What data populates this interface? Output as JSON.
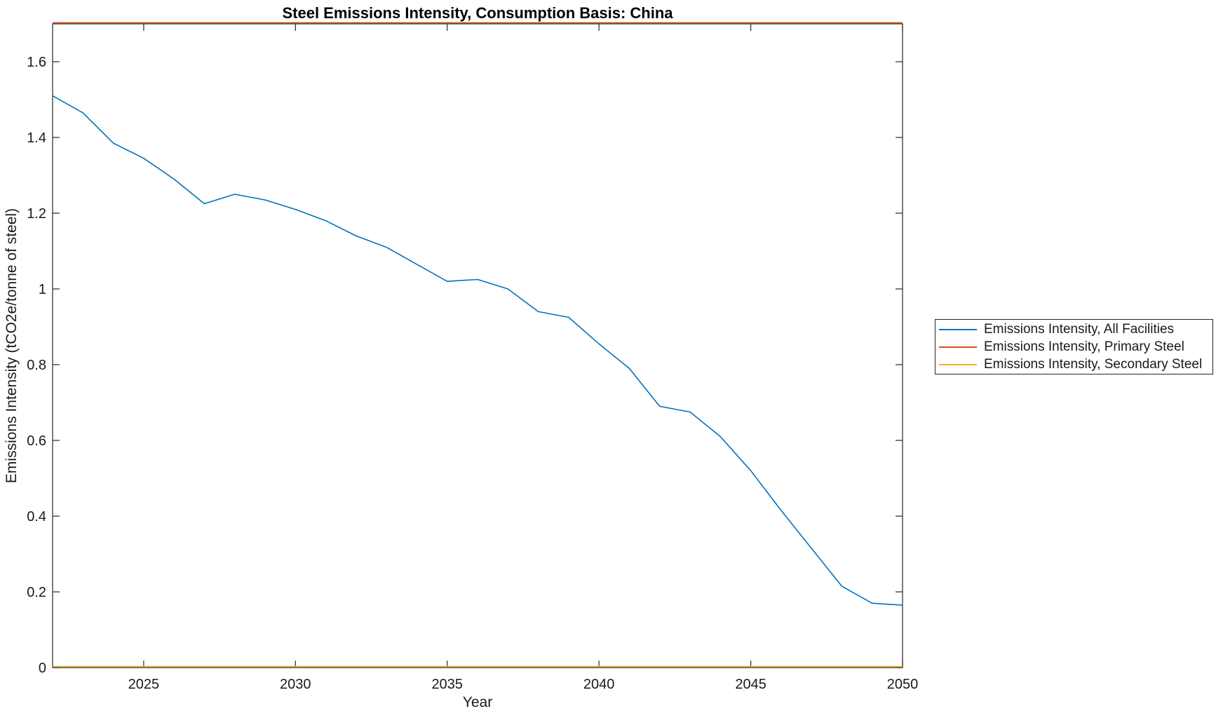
{
  "chart_data": {
    "type": "line",
    "title": "Steel Emissions Intensity, Consumption Basis: China",
    "xlabel": "Year",
    "ylabel": "Emissions Intensity (tCO2e/tonne of steel)",
    "xlim": [
      2022,
      2050
    ],
    "ylim": [
      0,
      1.7
    ],
    "xticks": [
      "2025",
      "2030",
      "2035",
      "2040",
      "2045",
      "2050"
    ],
    "xtick_values": [
      2025,
      2030,
      2035,
      2040,
      2045,
      2050
    ],
    "yticks": [
      "0",
      "0.2",
      "0.4",
      "0.6",
      "0.8",
      "1",
      "1.2",
      "1.4",
      "1.6"
    ],
    "ytick_values": [
      0,
      0.2,
      0.4,
      0.6,
      0.8,
      1,
      1.2,
      1.4,
      1.6
    ],
    "grid": false,
    "box": true,
    "tick_direction": "in",
    "legend_position": "right-outside",
    "axis_color": "#262626",
    "text_color": "#1a1a1a",
    "x": [
      2022,
      2023,
      2024,
      2025,
      2026,
      2027,
      2028,
      2029,
      2030,
      2031,
      2032,
      2033,
      2034,
      2035,
      2036,
      2037,
      2038,
      2039,
      2040,
      2041,
      2042,
      2043,
      2044,
      2045,
      2046,
      2047,
      2048,
      2049,
      2050
    ],
    "series": [
      {
        "name": "Emissions Intensity, All Facilities",
        "color": "#0072BD",
        "values": [
          1.51,
          1.465,
          1.385,
          1.345,
          1.29,
          1.225,
          1.25,
          1.235,
          1.21,
          1.18,
          1.14,
          1.11,
          1.065,
          1.02,
          1.025,
          1.0,
          0.94,
          0.925,
          0.855,
          0.79,
          0.69,
          0.675,
          0.61,
          0.52,
          0.415,
          0.315,
          0.215,
          0.17,
          0.165
        ]
      },
      {
        "name": "Emissions Intensity, Primary Steel",
        "color": "#D95319",
        "values": [
          1.7,
          1.7,
          1.7,
          1.7,
          1.7,
          1.7,
          1.7,
          1.7,
          1.7,
          1.7,
          1.7,
          1.7,
          1.7,
          1.7,
          1.7,
          1.7,
          1.7,
          1.7,
          1.7,
          1.7,
          1.7,
          1.7,
          1.7,
          1.7,
          1.7,
          1.7,
          1.7,
          1.7,
          1.7
        ]
      },
      {
        "name": "Emissions Intensity, Secondary Steel",
        "color": "#EDB120",
        "values": [
          0,
          0,
          0,
          0,
          0,
          0,
          0,
          0,
          0,
          0,
          0,
          0,
          0,
          0,
          0,
          0,
          0,
          0,
          0,
          0,
          0,
          0,
          0,
          0,
          0,
          0,
          0,
          0,
          0
        ]
      }
    ]
  }
}
